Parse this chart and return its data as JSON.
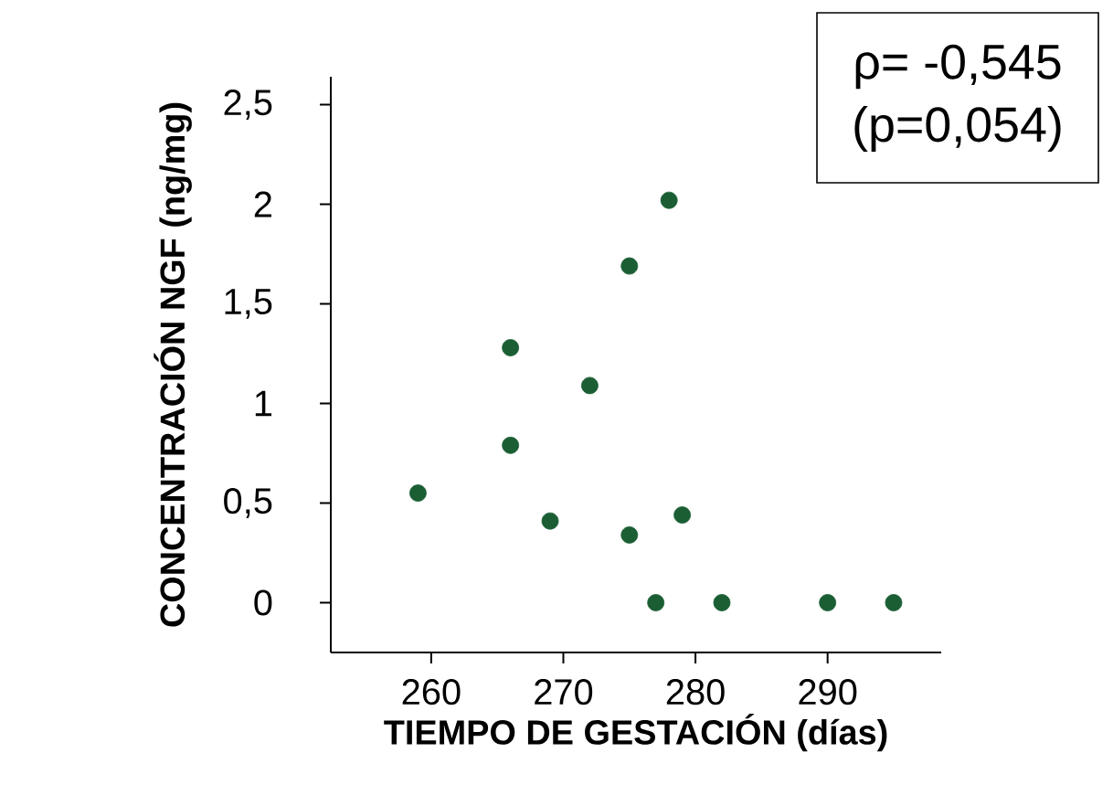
{
  "chart_data": {
    "type": "scatter",
    "xlabel": "TIEMPO DE GESTACIÓN (días)",
    "ylabel": "CONCENTRACIÓN NGF (ng/mg)",
    "annotations": [
      "ρ= -0,545",
      "(p=0,054)"
    ],
    "x": [
      259,
      266,
      266,
      269,
      272,
      275,
      275,
      278,
      279,
      277,
      282,
      290,
      295
    ],
    "values": [
      0.55,
      1.28,
      0.79,
      0.41,
      1.09,
      1.69,
      0.34,
      2.02,
      0.44,
      0,
      0,
      0,
      0
    ],
    "color": "#1b5e34",
    "marker": "circle",
    "xlim": [
      252.4,
      298.6
    ],
    "ylim": [
      -0.25,
      2.64
    ],
    "xticks": [
      260,
      270,
      280,
      290
    ],
    "yticks": [
      0,
      {
        "value": 0.5,
        "label": "0,5"
      },
      1,
      {
        "value": 1.5,
        "label": "1,5"
      },
      2,
      {
        "value": 2.5,
        "label": "2,5"
      }
    ]
  }
}
